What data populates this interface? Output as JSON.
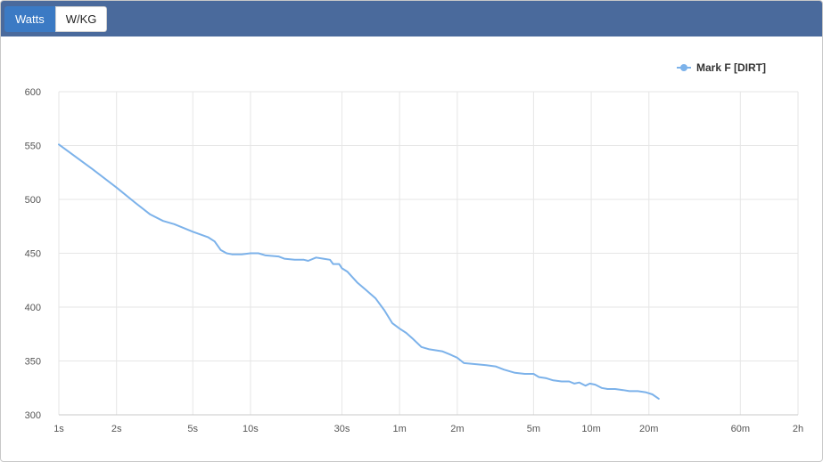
{
  "toggle": {
    "watts_label": "Watts",
    "wkg_label": "W/KG"
  },
  "chart_data": {
    "type": "line",
    "title": "",
    "xlabel": "",
    "ylabel": "",
    "x_scale": "log",
    "x_ticks": [
      {
        "seconds": 1,
        "label": "1s"
      },
      {
        "seconds": 2,
        "label": "2s"
      },
      {
        "seconds": 5,
        "label": "5s"
      },
      {
        "seconds": 10,
        "label": "10s"
      },
      {
        "seconds": 30,
        "label": "30s"
      },
      {
        "seconds": 60,
        "label": "1m"
      },
      {
        "seconds": 120,
        "label": "2m"
      },
      {
        "seconds": 300,
        "label": "5m"
      },
      {
        "seconds": 600,
        "label": "10m"
      },
      {
        "seconds": 1200,
        "label": "20m"
      },
      {
        "seconds": 3600,
        "label": "60m"
      },
      {
        "seconds": 7200,
        "label": "2h"
      }
    ],
    "y_ticks": [
      300,
      350,
      400,
      450,
      500,
      550,
      600
    ],
    "ylim": [
      300,
      600
    ],
    "xlim_seconds": [
      1,
      7200
    ],
    "grid": true,
    "legend_position": "top-right",
    "series": [
      {
        "name": "Mark F [DIRT]",
        "color": "#7cb2ea",
        "points": [
          [
            1,
            551
          ],
          [
            1.5,
            528
          ],
          [
            2,
            511
          ],
          [
            2.5,
            497
          ],
          [
            3,
            486
          ],
          [
            3.5,
            480
          ],
          [
            4,
            477
          ],
          [
            5,
            470
          ],
          [
            6,
            465
          ],
          [
            6.5,
            461
          ],
          [
            7,
            453
          ],
          [
            7.5,
            450
          ],
          [
            8,
            449
          ],
          [
            9,
            449
          ],
          [
            10,
            450
          ],
          [
            11,
            450
          ],
          [
            12,
            448
          ],
          [
            14,
            447
          ],
          [
            15,
            445
          ],
          [
            17,
            444
          ],
          [
            19,
            444
          ],
          [
            20,
            443
          ],
          [
            22,
            446
          ],
          [
            24,
            445
          ],
          [
            26,
            444
          ],
          [
            27,
            440
          ],
          [
            29,
            440
          ],
          [
            30,
            436
          ],
          [
            32,
            433
          ],
          [
            36,
            423
          ],
          [
            40,
            416
          ],
          [
            45,
            408
          ],
          [
            50,
            397
          ],
          [
            55,
            385
          ],
          [
            60,
            380
          ],
          [
            65,
            376
          ],
          [
            70,
            371
          ],
          [
            78,
            363
          ],
          [
            85,
            361
          ],
          [
            100,
            359
          ],
          [
            110,
            356
          ],
          [
            120,
            353
          ],
          [
            130,
            348
          ],
          [
            150,
            347
          ],
          [
            170,
            346
          ],
          [
            190,
            345
          ],
          [
            210,
            342
          ],
          [
            240,
            339
          ],
          [
            270,
            338
          ],
          [
            300,
            338
          ],
          [
            320,
            335
          ],
          [
            350,
            334
          ],
          [
            380,
            332
          ],
          [
            420,
            331
          ],
          [
            460,
            331
          ],
          [
            490,
            329
          ],
          [
            520,
            330
          ],
          [
            560,
            327
          ],
          [
            590,
            329
          ],
          [
            630,
            328
          ],
          [
            680,
            325
          ],
          [
            730,
            324
          ],
          [
            800,
            324
          ],
          [
            880,
            323
          ],
          [
            950,
            322
          ],
          [
            1050,
            322
          ],
          [
            1150,
            321
          ],
          [
            1250,
            319
          ],
          [
            1350,
            315
          ]
        ]
      }
    ]
  }
}
